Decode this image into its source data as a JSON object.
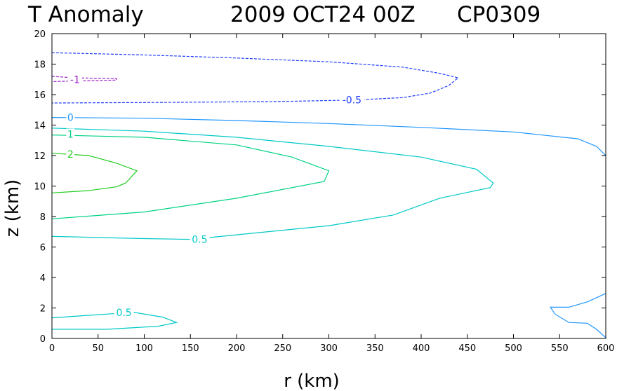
{
  "chart_data": {
    "type": "contour",
    "title": {
      "variable": "T Anomaly",
      "date": "2009 OCT24 00Z",
      "storm": "CP0309"
    },
    "xlabel": "r (km)",
    "ylabel": "z (km)",
    "xlim": [
      0,
      600
    ],
    "ylim": [
      0,
      20
    ],
    "xticks": [
      0,
      50,
      100,
      150,
      200,
      250,
      300,
      350,
      400,
      450,
      500,
      550,
      600
    ],
    "yticks": [
      0,
      2,
      4,
      6,
      8,
      10,
      12,
      14,
      16,
      18,
      20
    ],
    "contours": [
      {
        "level": -1,
        "label": "-1",
        "color": "#9a1ec8",
        "style": "dashed",
        "label_at": [
          25,
          17.0
        ],
        "points": [
          [
            0,
            17.2
          ],
          [
            25,
            17.1
          ],
          [
            70,
            17.05
          ],
          [
            70,
            16.95
          ],
          [
            30,
            16.9
          ],
          [
            0,
            16.85
          ]
        ]
      },
      {
        "level": -0.5,
        "label": "-0.5",
        "color": "#1e3cff",
        "style": "dashed",
        "label_at": [
          325,
          15.65
        ],
        "points": [
          [
            0,
            18.75
          ],
          [
            100,
            18.6
          ],
          [
            200,
            18.4
          ],
          [
            300,
            18.15
          ],
          [
            380,
            17.8
          ],
          [
            420,
            17.4
          ],
          [
            440,
            17.1
          ],
          [
            430,
            16.6
          ],
          [
            410,
            16.1
          ],
          [
            380,
            15.8
          ],
          [
            330,
            15.65
          ],
          [
            250,
            15.55
          ],
          [
            150,
            15.5
          ],
          [
            0,
            15.45
          ]
        ]
      },
      {
        "level": 0,
        "label": "0",
        "color": "#1e96ff",
        "style": "solid",
        "label_at": [
          20,
          14.5
        ],
        "points": [
          [
            0,
            14.5
          ],
          [
            100,
            14.45
          ],
          [
            200,
            14.3
          ],
          [
            300,
            14.1
          ],
          [
            400,
            13.85
          ],
          [
            500,
            13.55
          ],
          [
            570,
            13.1
          ],
          [
            590,
            12.6
          ],
          [
            600,
            12.0
          ]
        ]
      },
      {
        "level": 0,
        "label": "",
        "color": "#1e96ff",
        "style": "solid",
        "label_at": null,
        "points": [
          [
            600,
            0.05
          ],
          [
            590,
            0.6
          ],
          [
            580,
            1.0
          ],
          [
            560,
            1.05
          ],
          [
            545,
            1.6
          ],
          [
            540,
            2.05
          ],
          [
            560,
            2.05
          ],
          [
            580,
            2.4
          ],
          [
            600,
            2.95
          ]
        ]
      },
      {
        "level": 0.5,
        "label": "0.5",
        "color": "#00c8c8",
        "style": "solid",
        "label_at": [
          160,
          6.5
        ],
        "points": [
          [
            0,
            13.8
          ],
          [
            100,
            13.6
          ],
          [
            200,
            13.2
          ],
          [
            300,
            12.6
          ],
          [
            400,
            11.9
          ],
          [
            460,
            11.1
          ],
          [
            478,
            10.2
          ],
          [
            475,
            9.9
          ],
          [
            420,
            9.2
          ],
          [
            370,
            8.1
          ],
          [
            300,
            7.4
          ],
          [
            200,
            6.8
          ],
          [
            150,
            6.5
          ],
          [
            100,
            6.55
          ],
          [
            0,
            6.7
          ]
        ]
      },
      {
        "level": 0.5,
        "label": "0.5",
        "color": "#00c8c8",
        "style": "solid",
        "label_at": [
          78,
          1.7
        ],
        "points": [
          [
            0,
            1.35
          ],
          [
            60,
            1.6
          ],
          [
            90,
            1.7
          ],
          [
            120,
            1.4
          ],
          [
            135,
            1.05
          ],
          [
            115,
            0.8
          ],
          [
            60,
            0.6
          ],
          [
            0,
            0.6
          ]
        ]
      },
      {
        "level": 1,
        "label": "1",
        "color": "#00d282",
        "style": "solid",
        "label_at": [
          20,
          13.4
        ],
        "points": [
          [
            0,
            13.35
          ],
          [
            100,
            13.2
          ],
          [
            200,
            12.7
          ],
          [
            260,
            11.9
          ],
          [
            300,
            11.0
          ],
          [
            295,
            10.3
          ],
          [
            200,
            9.2
          ],
          [
            100,
            8.3
          ],
          [
            0,
            7.85
          ]
        ]
      },
      {
        "level": 2,
        "label": "2",
        "color": "#1ecc1e",
        "style": "solid",
        "label_at": [
          20,
          12.1
        ],
        "points": [
          [
            0,
            12.15
          ],
          [
            40,
            12.0
          ],
          [
            70,
            11.5
          ],
          [
            92,
            11.0
          ],
          [
            80,
            10.2
          ],
          [
            70,
            9.95
          ],
          [
            40,
            9.7
          ],
          [
            0,
            9.55
          ]
        ]
      }
    ]
  }
}
